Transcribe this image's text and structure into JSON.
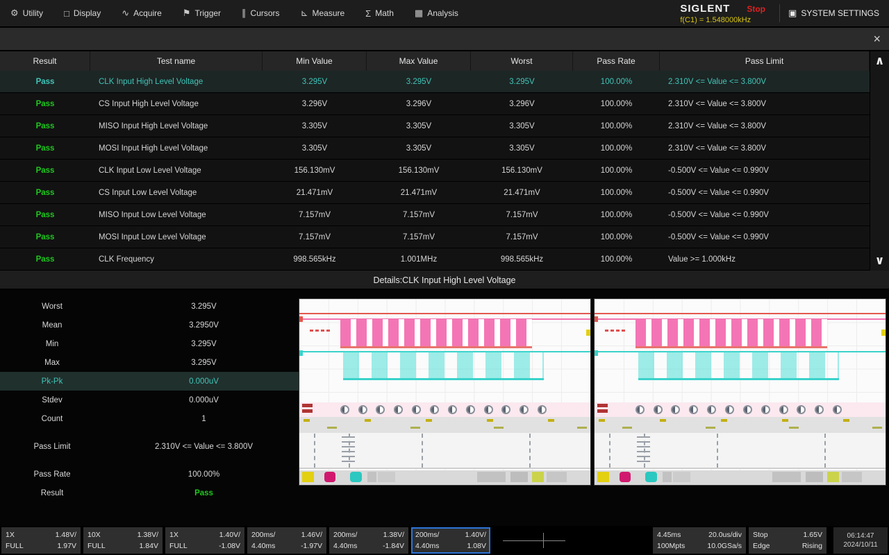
{
  "menu": {
    "items": [
      {
        "label": "Utility",
        "icon": "⚙"
      },
      {
        "label": "Display",
        "icon": "□"
      },
      {
        "label": "Acquire",
        "icon": "∿"
      },
      {
        "label": "Trigger",
        "icon": "⚑"
      },
      {
        "label": "Cursors",
        "icon": "∥"
      },
      {
        "label": "Measure",
        "icon": "⊾"
      },
      {
        "label": "Math",
        "icon": "Σ"
      },
      {
        "label": "Analysis",
        "icon": "▦"
      }
    ],
    "brand": "SIGLENT",
    "acq_status": "Stop",
    "freq_readout": "f(C1) = 1.548000kHz",
    "system_settings": "SYSTEM SETTINGS",
    "system_icon": "▣"
  },
  "dialog": {
    "close_icon": "×"
  },
  "scrollbar": {
    "up_icon": "∧",
    "down_icon": "∨"
  },
  "table": {
    "columns": [
      "Result",
      "Test name",
      "Min Value",
      "Max Value",
      "Worst",
      "Pass Rate",
      "Pass Limit"
    ],
    "rows": [
      {
        "result": "Pass",
        "name": "CLK Input High Level Voltage",
        "min": "3.295V",
        "max": "3.295V",
        "worst": "3.295V",
        "rate": "100.00%",
        "limit": "2.310V <= Value <= 3.800V"
      },
      {
        "result": "Pass",
        "name": "CS Input High Level Voltage",
        "min": "3.296V",
        "max": "3.296V",
        "worst": "3.296V",
        "rate": "100.00%",
        "limit": "2.310V <= Value <= 3.800V"
      },
      {
        "result": "Pass",
        "name": "MISO Input High Level Voltage",
        "min": "3.305V",
        "max": "3.305V",
        "worst": "3.305V",
        "rate": "100.00%",
        "limit": "2.310V <= Value <= 3.800V"
      },
      {
        "result": "Pass",
        "name": "MOSI Input High Level Voltage",
        "min": "3.305V",
        "max": "3.305V",
        "worst": "3.305V",
        "rate": "100.00%",
        "limit": "2.310V <= Value <= 3.800V"
      },
      {
        "result": "Pass",
        "name": "CLK Input Low Level Voltage",
        "min": "156.130mV",
        "max": "156.130mV",
        "worst": "156.130mV",
        "rate": "100.00%",
        "limit": "-0.500V <= Value <= 0.990V"
      },
      {
        "result": "Pass",
        "name": "CS Input Low Level Voltage",
        "min": "21.471mV",
        "max": "21.471mV",
        "worst": "21.471mV",
        "rate": "100.00%",
        "limit": "-0.500V <= Value <= 0.990V"
      },
      {
        "result": "Pass",
        "name": "MISO Input Low Level Voltage",
        "min": "7.157mV",
        "max": "7.157mV",
        "worst": "7.157mV",
        "rate": "100.00%",
        "limit": "-0.500V <= Value <= 0.990V"
      },
      {
        "result": "Pass",
        "name": "MOSI Input Low Level Voltage",
        "min": "7.157mV",
        "max": "7.157mV",
        "worst": "7.157mV",
        "rate": "100.00%",
        "limit": "-0.500V <= Value <= 0.990V"
      },
      {
        "result": "Pass",
        "name": "CLK Frequency",
        "min": "998.565kHz",
        "max": "1.001MHz",
        "worst": "998.565kHz",
        "rate": "100.00%",
        "limit": "Value >= 1.000kHz"
      }
    ]
  },
  "details": {
    "title": "Details:CLK Input High Level Voltage",
    "stats": [
      {
        "label": "Worst",
        "value": "3.295V"
      },
      {
        "label": "Mean",
        "value": "3.2950V"
      },
      {
        "label": "Min",
        "value": "3.295V"
      },
      {
        "label": "Max",
        "value": "3.295V"
      },
      {
        "label": "Pk-Pk",
        "value": "0.000uV"
      },
      {
        "label": "Stdev",
        "value": "0.000uV"
      },
      {
        "label": "Count",
        "value": "1"
      },
      {
        "label": "Pass Limit",
        "value": "2.310V <= Value <= 3.800V"
      },
      {
        "label": "Pass Rate",
        "value": "100.00%"
      },
      {
        "label": "Result",
        "value": "Pass"
      }
    ]
  },
  "statusbar": {
    "channels": [
      {
        "l1": "1X",
        "r1": "1.48V/",
        "l2": "FULL",
        "r2": "1.97V"
      },
      {
        "l1": "10X",
        "r1": "1.38V/",
        "l2": "FULL",
        "r2": "1.84V"
      },
      {
        "l1": "1X",
        "r1": "1.40V/",
        "l2": "FULL",
        "r2": "-1.08V"
      },
      {
        "l1": "200ms/",
        "r1": "1.46V/",
        "l2": "4.40ms",
        "r2": "-1.97V"
      },
      {
        "l1": "200ms/",
        "r1": "1.38V/",
        "l2": "4.40ms",
        "r2": "-1.84V"
      },
      {
        "l1": "200ms/",
        "r1": "1.40V/",
        "l2": "4.40ms",
        "r2": "1.08V"
      }
    ],
    "timebase": {
      "delay": "4.45ms",
      "scale": "20.0us/div",
      "mem": "100Mpts",
      "rate": "10.0GSa/s"
    },
    "trigger": {
      "status": "Stop",
      "level": "1.65V",
      "type": "Edge",
      "slope": "Rising"
    },
    "clock": {
      "time": "06:14:47",
      "date": "2024/10/11"
    }
  },
  "colors": {
    "accent_teal": "#41c4b8",
    "pass_green": "#1ec81e",
    "stop_red": "#e02020",
    "readout_yellow": "#d8c613",
    "select_blue": "#2d74d8",
    "wave_pink": "#f272ae",
    "wave_cyan": "#3ad2ca"
  }
}
